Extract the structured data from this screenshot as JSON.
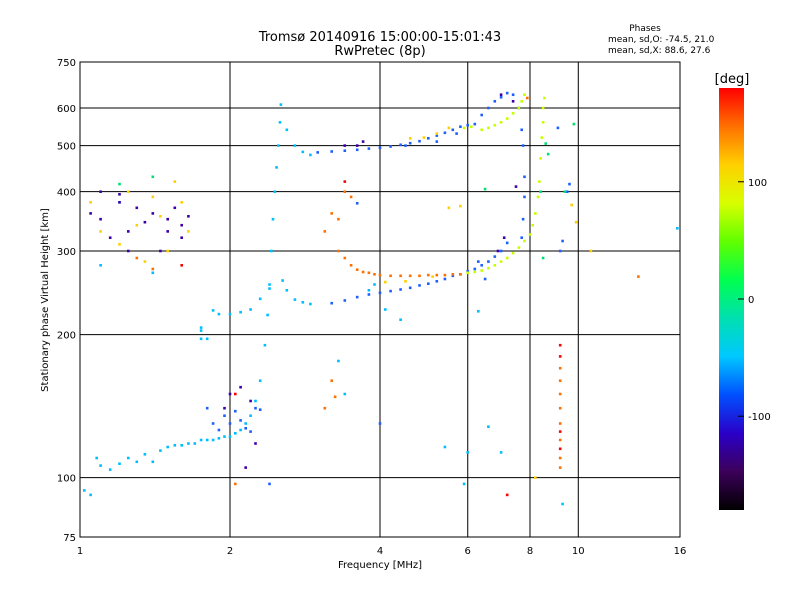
{
  "chart_data": {
    "type": "scatter",
    "title": "Tromsø 20140916 15:00:00-15:01:43",
    "subtitle": "RwPretec (8p)",
    "xlabel": "Frequency [MHz]",
    "ylabel": "Stationary phase Virtual Height [km]",
    "x_scale": "log",
    "y_scale": "log",
    "xlim": [
      1,
      16
    ],
    "ylim": [
      75,
      750
    ],
    "x_ticks": [
      1,
      2,
      4,
      6,
      8,
      10,
      16
    ],
    "y_ticks": [
      75,
      100,
      200,
      300,
      400,
      500,
      600,
      750
    ],
    "grid": true,
    "phase_stats": {
      "title": "Phases",
      "line_o": "mean, sd,O: -74.5, 21.0",
      "line_x": "mean, sd,X:  88.6, 27.6"
    },
    "colorbar": {
      "label": "[deg]",
      "range": [
        -180,
        180
      ],
      "ticks": [
        100,
        0,
        -100
      ],
      "colors": [
        "#000000",
        "#3c005a",
        "#2a00c8",
        "#0050ff",
        "#00c8ff",
        "#00e0b0",
        "#00ff50",
        "#60ff00",
        "#d8ff00",
        "#ffd000",
        "#ff7000",
        "#ff0000"
      ]
    },
    "series": [
      {
        "color": "#00bfff",
        "points": [
          [
            1.02,
            94
          ],
          [
            1.05,
            92
          ],
          [
            1.08,
            110
          ],
          [
            1.1,
            106
          ],
          [
            1.15,
            104
          ],
          [
            1.2,
            107
          ],
          [
            1.25,
            110
          ],
          [
            1.3,
            108
          ],
          [
            1.35,
            112
          ],
          [
            1.4,
            108
          ],
          [
            1.45,
            114
          ],
          [
            1.5,
            116
          ],
          [
            1.55,
            117
          ],
          [
            1.6,
            117
          ],
          [
            1.65,
            118
          ],
          [
            1.7,
            118
          ],
          [
            1.75,
            120
          ],
          [
            1.8,
            120
          ],
          [
            1.85,
            120
          ],
          [
            1.9,
            121
          ],
          [
            1.95,
            122
          ],
          [
            2.0,
            122
          ],
          [
            2.05,
            124
          ],
          [
            2.1,
            126
          ],
          [
            2.15,
            130
          ],
          [
            2.2,
            135
          ],
          [
            2.25,
            145
          ],
          [
            2.3,
            160
          ],
          [
            2.35,
            190
          ],
          [
            2.38,
            220
          ],
          [
            2.4,
            250
          ],
          [
            2.42,
            300
          ],
          [
            2.44,
            350
          ],
          [
            2.46,
            400
          ],
          [
            2.48,
            450
          ],
          [
            2.5,
            500
          ],
          [
            2.52,
            560
          ],
          [
            2.53,
            610
          ],
          [
            1.75,
            207
          ],
          [
            1.75,
            196
          ],
          [
            1.8,
            196
          ],
          [
            1.75,
            204
          ],
          [
            1.85,
            225
          ],
          [
            1.9,
            221
          ],
          [
            2.0,
            221
          ],
          [
            2.1,
            223
          ],
          [
            2.2,
            226
          ],
          [
            2.3,
            238
          ],
          [
            2.4,
            255
          ],
          [
            2.55,
            260
          ],
          [
            2.6,
            248
          ],
          [
            2.7,
            237
          ],
          [
            2.8,
            234
          ],
          [
            2.9,
            232
          ],
          [
            2.6,
            540
          ],
          [
            2.7,
            500
          ],
          [
            2.8,
            485
          ],
          [
            2.9,
            478
          ],
          [
            3.3,
            176
          ],
          [
            3.4,
            150
          ],
          [
            3.8,
            248
          ],
          [
            3.9,
            255
          ],
          [
            4.1,
            226
          ],
          [
            4.4,
            215
          ],
          [
            5.4,
            116
          ],
          [
            5.9,
            97
          ],
          [
            6.3,
            224
          ],
          [
            6.6,
            128
          ],
          [
            6.0,
            113
          ],
          [
            7.0,
            113
          ],
          [
            9.3,
            88
          ],
          [
            15.8,
            335
          ],
          [
            1.1,
            280
          ],
          [
            1.4,
            270
          ],
          [
            1.2,
            380
          ]
        ]
      },
      {
        "color": "#1e60ff",
        "points": [
          [
            1.8,
            140
          ],
          [
            1.85,
            130
          ],
          [
            1.9,
            126
          ],
          [
            1.95,
            135
          ],
          [
            2.0,
            130
          ],
          [
            2.05,
            138
          ],
          [
            2.1,
            132
          ],
          [
            2.15,
            127
          ],
          [
            2.2,
            125
          ],
          [
            2.25,
            140
          ],
          [
            2.3,
            139
          ],
          [
            2.4,
            97
          ],
          [
            3.2,
            233
          ],
          [
            3.4,
            236
          ],
          [
            3.6,
            240
          ],
          [
            3.8,
            243
          ],
          [
            4.0,
            245
          ],
          [
            4.2,
            247
          ],
          [
            4.4,
            249
          ],
          [
            4.6,
            251
          ],
          [
            4.8,
            254
          ],
          [
            5.0,
            256
          ],
          [
            5.2,
            259
          ],
          [
            5.4,
            262
          ],
          [
            5.6,
            266
          ],
          [
            5.8,
            268
          ],
          [
            6.0,
            272
          ],
          [
            6.2,
            275
          ],
          [
            6.4,
            280
          ],
          [
            6.6,
            285
          ],
          [
            6.8,
            292
          ],
          [
            7.0,
            300
          ],
          [
            7.2,
            312
          ],
          [
            3.0,
            484
          ],
          [
            3.2,
            486
          ],
          [
            3.4,
            488
          ],
          [
            3.6,
            490
          ],
          [
            3.8,
            493
          ],
          [
            4.0,
            495
          ],
          [
            4.2,
            498
          ],
          [
            4.4,
            502
          ],
          [
            4.6,
            506
          ],
          [
            4.8,
            511
          ],
          [
            5.0,
            518
          ],
          [
            5.2,
            525
          ],
          [
            5.4,
            532
          ],
          [
            5.6,
            540
          ],
          [
            5.8,
            548
          ],
          [
            6.0,
            552
          ],
          [
            6.2,
            555
          ],
          [
            6.4,
            580
          ],
          [
            6.6,
            600
          ],
          [
            6.8,
            620
          ],
          [
            7.0,
            632
          ],
          [
            7.2,
            645
          ],
          [
            7.4,
            640
          ],
          [
            7.6,
            600
          ],
          [
            7.7,
            540
          ],
          [
            7.75,
            500
          ],
          [
            7.8,
            430
          ],
          [
            7.8,
            390
          ],
          [
            7.75,
            350
          ],
          [
            7.7,
            320
          ],
          [
            3.6,
            378
          ],
          [
            4.0,
            130
          ],
          [
            4.5,
            500
          ],
          [
            5.2,
            510
          ],
          [
            5.7,
            530
          ],
          [
            6.3,
            285
          ],
          [
            6.5,
            262
          ],
          [
            9.1,
            545
          ],
          [
            9.2,
            300
          ],
          [
            9.3,
            315
          ],
          [
            9.5,
            400
          ],
          [
            9.6,
            415
          ]
        ]
      },
      {
        "color": "#3c00aa",
        "points": [
          [
            1.1,
            400
          ],
          [
            1.2,
            380
          ],
          [
            1.3,
            370
          ],
          [
            1.4,
            360
          ],
          [
            1.5,
            350
          ],
          [
            1.6,
            340
          ],
          [
            1.1,
            350
          ],
          [
            1.15,
            320
          ],
          [
            1.25,
            330
          ],
          [
            1.35,
            345
          ],
          [
            1.45,
            300
          ],
          [
            1.55,
            370
          ],
          [
            1.65,
            355
          ],
          [
            1.05,
            360
          ],
          [
            1.25,
            300
          ],
          [
            1.6,
            320
          ],
          [
            1.2,
            395
          ],
          [
            1.5,
            330
          ],
          [
            2.0,
            150
          ],
          [
            2.1,
            155
          ],
          [
            2.2,
            145
          ],
          [
            2.25,
            118
          ],
          [
            2.15,
            105
          ],
          [
            1.95,
            140
          ],
          [
            3.4,
            500
          ],
          [
            3.6,
            500
          ],
          [
            3.7,
            510
          ],
          [
            7.1,
            320
          ],
          [
            6.9,
            300
          ],
          [
            7.4,
            620
          ],
          [
            7.5,
            410
          ],
          [
            7.0,
            640
          ]
        ]
      },
      {
        "color": "#ffd000",
        "points": [
          [
            1.05,
            380
          ],
          [
            1.1,
            330
          ],
          [
            1.2,
            310
          ],
          [
            1.3,
            340
          ],
          [
            1.4,
            390
          ],
          [
            1.5,
            300
          ],
          [
            1.6,
            380
          ],
          [
            1.35,
            285
          ],
          [
            1.45,
            355
          ],
          [
            1.55,
            420
          ],
          [
            1.25,
            400
          ],
          [
            1.65,
            330
          ],
          [
            4.6,
            518
          ],
          [
            4.9,
            520
          ],
          [
            5.2,
            530
          ],
          [
            5.5,
            545
          ],
          [
            4.1,
            258
          ],
          [
            4.5,
            259
          ],
          [
            5.1,
            265
          ],
          [
            8.2,
            100
          ],
          [
            9.7,
            375
          ],
          [
            10.6,
            300
          ],
          [
            9.9,
            345
          ],
          [
            5.5,
            370
          ],
          [
            5.8,
            373
          ]
        ]
      },
      {
        "color": "#ff7000",
        "points": [
          [
            3.3,
            300
          ],
          [
            3.4,
            290
          ],
          [
            3.5,
            280
          ],
          [
            3.6,
            274
          ],
          [
            3.7,
            271
          ],
          [
            3.8,
            270
          ],
          [
            3.9,
            268
          ],
          [
            4.0,
            267
          ],
          [
            4.2,
            266
          ],
          [
            4.4,
            266
          ],
          [
            4.6,
            266
          ],
          [
            4.8,
            266
          ],
          [
            5.0,
            267
          ],
          [
            5.2,
            267
          ],
          [
            5.4,
            267
          ],
          [
            5.6,
            268
          ],
          [
            5.8,
            268
          ],
          [
            3.2,
            360
          ],
          [
            3.3,
            350
          ],
          [
            3.1,
            330
          ],
          [
            3.4,
            400
          ],
          [
            3.5,
            390
          ],
          [
            3.2,
            160
          ],
          [
            3.25,
            148
          ],
          [
            3.1,
            140
          ],
          [
            2.05,
            97
          ],
          [
            9.2,
            170
          ],
          [
            9.2,
            160
          ],
          [
            9.2,
            150
          ],
          [
            9.2,
            140
          ],
          [
            9.2,
            130
          ],
          [
            9.2,
            120
          ],
          [
            9.2,
            110
          ],
          [
            9.2,
            105
          ],
          [
            7.9,
            630
          ],
          [
            13.2,
            265
          ],
          [
            1.3,
            290
          ],
          [
            1.4,
            275
          ]
        ]
      },
      {
        "color": "#ff0000",
        "points": [
          [
            3.4,
            420
          ],
          [
            2.05,
            150
          ],
          [
            9.2,
            190
          ],
          [
            9.2,
            180
          ],
          [
            9.2,
            125
          ],
          [
            9.2,
            115
          ],
          [
            7.2,
            92
          ],
          [
            1.6,
            280
          ]
        ]
      },
      {
        "color": "#c8ff00",
        "points": [
          [
            6.0,
            270
          ],
          [
            6.2,
            271
          ],
          [
            6.4,
            273
          ],
          [
            6.6,
            276
          ],
          [
            6.8,
            280
          ],
          [
            7.0,
            285
          ],
          [
            7.2,
            290
          ],
          [
            7.4,
            297
          ],
          [
            7.6,
            305
          ],
          [
            7.8,
            315
          ],
          [
            8.0,
            325
          ],
          [
            8.1,
            340
          ],
          [
            8.2,
            360
          ],
          [
            8.3,
            390
          ],
          [
            8.35,
            420
          ],
          [
            8.4,
            470
          ],
          [
            8.45,
            520
          ],
          [
            8.5,
            560
          ],
          [
            8.5,
            600
          ],
          [
            8.55,
            630
          ],
          [
            6.4,
            540
          ],
          [
            6.6,
            545
          ],
          [
            6.8,
            552
          ],
          [
            7.0,
            560
          ],
          [
            7.2,
            570
          ],
          [
            7.4,
            585
          ],
          [
            7.6,
            600
          ],
          [
            7.7,
            620
          ],
          [
            7.8,
            640
          ],
          [
            5.9,
            545
          ],
          [
            6.1,
            548
          ]
        ]
      },
      {
        "color": "#00e070",
        "points": [
          [
            8.6,
            505
          ],
          [
            8.7,
            480
          ],
          [
            9.4,
            400
          ],
          [
            9.8,
            555
          ],
          [
            6.5,
            405
          ],
          [
            8.4,
            400
          ],
          [
            8.5,
            290
          ],
          [
            1.4,
            430
          ],
          [
            1.2,
            415
          ]
        ]
      }
    ]
  }
}
